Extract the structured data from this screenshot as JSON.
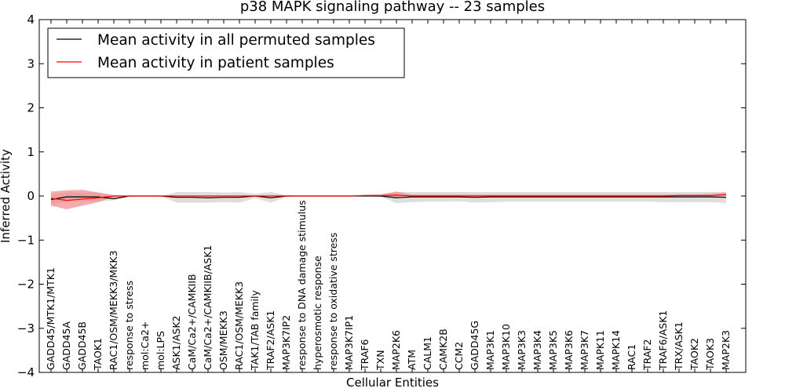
{
  "chart_data": {
    "type": "line",
    "title": "p38 MAPK signaling pathway -- 23 samples",
    "xlabel": "Cellular Entities",
    "ylabel": "Inferred Activity",
    "ylim": [
      -4,
      4
    ],
    "yticks": [
      "4",
      "3",
      "2",
      "1",
      "0",
      "−1",
      "−2",
      "−3",
      "−4"
    ],
    "ytick_values": [
      4,
      3,
      2,
      1,
      0,
      -1,
      -2,
      -3,
      -4
    ],
    "grid": false,
    "legend_position": "top-left",
    "categories": [
      "GADD45/MTK1/MTK1",
      "GADD45A",
      "GADD45B",
      "TAOK1",
      "RAC1/OSM/MEKK3/MKK3",
      "response to stress",
      "mol:Ca2+",
      "mol:LPS",
      "ASK1/ASK2",
      "CaM/Ca2+/CAMKIIB",
      "CaM/Ca2+/CAMKIIB/ASK1",
      "OSM/MEKK3",
      "RAC1/OSM/MEKK3",
      "TAK1/TAB family",
      "TRAF2/ASK1",
      "MAP3K7IP2",
      "response to DNA damage stimulus",
      "hyperosmotic response",
      "response to oxidative stress",
      "MAP3K7IP1",
      "TRAF6",
      "TXN",
      "MAP2K6",
      "ATM",
      "CALM1",
      "CAMK2B",
      "CCM2",
      "GADD45G",
      "MAP3K1",
      "MAP3K10",
      "MAP3K3",
      "MAP3K4",
      "MAP3K5",
      "MAP3K6",
      "MAP3K7",
      "MAPK11",
      "MAPK14",
      "RAC1",
      "TRAF2",
      "TRAF6/ASK1",
      "TRX/ASK1",
      "TAOK2",
      "TAOK3",
      "MAP2K3"
    ],
    "series": [
      {
        "name": "Mean activity in all permuted samples",
        "color": "#000000",
        "band_color": "#d3d3d3",
        "values": [
          -0.08,
          -0.02,
          -0.02,
          -0.02,
          -0.06,
          0.0,
          0.0,
          0.0,
          -0.03,
          -0.03,
          -0.04,
          -0.03,
          -0.03,
          0.0,
          -0.04,
          0.0,
          0.0,
          0.0,
          0.0,
          0.0,
          0.0,
          0.0,
          -0.04,
          -0.02,
          -0.02,
          -0.02,
          -0.02,
          -0.03,
          -0.02,
          -0.02,
          -0.02,
          -0.02,
          -0.02,
          -0.02,
          -0.02,
          -0.02,
          -0.02,
          -0.02,
          -0.02,
          -0.02,
          -0.02,
          -0.02,
          -0.02,
          -0.03
        ],
        "lower": [
          -0.2,
          -0.12,
          -0.12,
          -0.12,
          -0.1,
          0.0,
          0.0,
          0.0,
          -0.15,
          -0.15,
          -0.15,
          -0.14,
          -0.15,
          -0.05,
          -0.15,
          -0.02,
          0.0,
          0.0,
          0.0,
          0.0,
          0.0,
          -0.02,
          -0.16,
          -0.14,
          -0.13,
          -0.13,
          -0.12,
          -0.15,
          -0.14,
          -0.13,
          -0.13,
          -0.13,
          -0.13,
          -0.13,
          -0.13,
          -0.13,
          -0.13,
          -0.13,
          -0.13,
          -0.14,
          -0.14,
          -0.14,
          -0.14,
          -0.16
        ],
        "upper": [
          0.04,
          0.08,
          0.08,
          0.08,
          0.02,
          0.0,
          0.0,
          0.0,
          0.09,
          0.09,
          0.09,
          0.08,
          0.09,
          0.05,
          0.09,
          0.02,
          0.0,
          0.0,
          0.0,
          0.0,
          0.0,
          0.02,
          0.09,
          0.09,
          0.09,
          0.09,
          0.09,
          0.09,
          0.09,
          0.09,
          0.09,
          0.09,
          0.09,
          0.09,
          0.09,
          0.09,
          0.09,
          0.09,
          0.09,
          0.09,
          0.09,
          0.09,
          0.09,
          0.09
        ]
      },
      {
        "name": "Mean activity in patient samples",
        "color": "#ff0000",
        "band_color": "#f08080",
        "values": [
          -0.05,
          -0.1,
          -0.07,
          -0.04,
          0.0,
          0.0,
          0.0,
          0.0,
          0.0,
          0.0,
          0.0,
          0.0,
          0.0,
          0.0,
          0.0,
          0.0,
          0.0,
          0.0,
          0.0,
          0.0,
          0.01,
          0.01,
          0.02,
          0.0,
          0.0,
          0.0,
          0.0,
          0.0,
          0.0,
          0.0,
          0.0,
          0.0,
          0.0,
          0.0,
          0.0,
          0.0,
          0.0,
          0.0,
          0.0,
          0.0,
          0.01,
          0.01,
          0.01,
          0.03
        ],
        "lower": [
          -0.22,
          -0.3,
          -0.22,
          -0.14,
          -0.02,
          0.0,
          0.0,
          0.0,
          0.0,
          0.0,
          0.0,
          0.0,
          0.0,
          0.0,
          0.0,
          0.0,
          0.0,
          0.0,
          0.0,
          0.0,
          -0.01,
          -0.01,
          -0.02,
          -0.01,
          -0.01,
          -0.01,
          -0.01,
          -0.01,
          -0.01,
          -0.01,
          -0.01,
          -0.01,
          -0.01,
          -0.01,
          -0.01,
          -0.01,
          -0.01,
          -0.01,
          -0.01,
          -0.01,
          -0.01,
          -0.01,
          -0.01,
          -0.01
        ],
        "upper": [
          0.1,
          0.13,
          0.14,
          0.08,
          0.02,
          0.0,
          0.0,
          0.0,
          0.0,
          0.0,
          0.0,
          0.0,
          0.0,
          0.0,
          0.0,
          0.0,
          0.0,
          0.0,
          0.0,
          0.0,
          0.03,
          0.04,
          0.1,
          0.03,
          0.03,
          0.03,
          0.03,
          0.03,
          0.03,
          0.03,
          0.03,
          0.03,
          0.03,
          0.03,
          0.03,
          0.03,
          0.03,
          0.03,
          0.03,
          0.03,
          0.04,
          0.04,
          0.05,
          0.08
        ]
      }
    ]
  }
}
